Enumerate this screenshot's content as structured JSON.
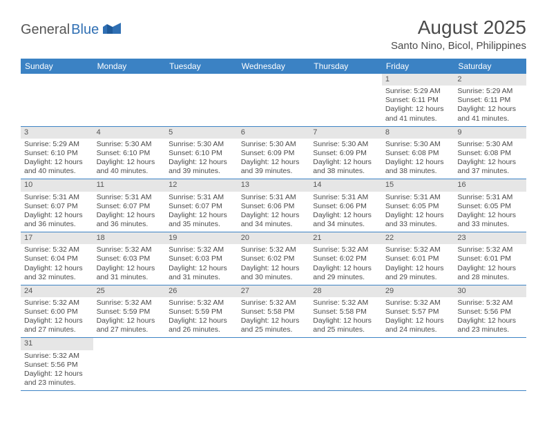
{
  "logo": {
    "part1": "General",
    "part2": "Blue"
  },
  "title": "August 2025",
  "location": "Santo Nino, Bicol, Philippines",
  "colors": {
    "header_bg": "#3b82c4",
    "header_text": "#ffffff",
    "daynum_bg": "#e6e6e6",
    "text": "#4a4a4a",
    "logo_blue": "#2f6fb3",
    "page_bg": "#ffffff",
    "row_border": "#3b82c4"
  },
  "weekdays": [
    "Sunday",
    "Monday",
    "Tuesday",
    "Wednesday",
    "Thursday",
    "Friday",
    "Saturday"
  ],
  "weeks": [
    [
      {
        "num": "",
        "sunrise": "",
        "sunset": "",
        "daylight": ""
      },
      {
        "num": "",
        "sunrise": "",
        "sunset": "",
        "daylight": ""
      },
      {
        "num": "",
        "sunrise": "",
        "sunset": "",
        "daylight": ""
      },
      {
        "num": "",
        "sunrise": "",
        "sunset": "",
        "daylight": ""
      },
      {
        "num": "",
        "sunrise": "",
        "sunset": "",
        "daylight": ""
      },
      {
        "num": "1",
        "sunrise": "Sunrise: 5:29 AM",
        "sunset": "Sunset: 6:11 PM",
        "daylight": "Daylight: 12 hours and 41 minutes."
      },
      {
        "num": "2",
        "sunrise": "Sunrise: 5:29 AM",
        "sunset": "Sunset: 6:11 PM",
        "daylight": "Daylight: 12 hours and 41 minutes."
      }
    ],
    [
      {
        "num": "3",
        "sunrise": "Sunrise: 5:29 AM",
        "sunset": "Sunset: 6:10 PM",
        "daylight": "Daylight: 12 hours and 40 minutes."
      },
      {
        "num": "4",
        "sunrise": "Sunrise: 5:30 AM",
        "sunset": "Sunset: 6:10 PM",
        "daylight": "Daylight: 12 hours and 40 minutes."
      },
      {
        "num": "5",
        "sunrise": "Sunrise: 5:30 AM",
        "sunset": "Sunset: 6:10 PM",
        "daylight": "Daylight: 12 hours and 39 minutes."
      },
      {
        "num": "6",
        "sunrise": "Sunrise: 5:30 AM",
        "sunset": "Sunset: 6:09 PM",
        "daylight": "Daylight: 12 hours and 39 minutes."
      },
      {
        "num": "7",
        "sunrise": "Sunrise: 5:30 AM",
        "sunset": "Sunset: 6:09 PM",
        "daylight": "Daylight: 12 hours and 38 minutes."
      },
      {
        "num": "8",
        "sunrise": "Sunrise: 5:30 AM",
        "sunset": "Sunset: 6:08 PM",
        "daylight": "Daylight: 12 hours and 38 minutes."
      },
      {
        "num": "9",
        "sunrise": "Sunrise: 5:30 AM",
        "sunset": "Sunset: 6:08 PM",
        "daylight": "Daylight: 12 hours and 37 minutes."
      }
    ],
    [
      {
        "num": "10",
        "sunrise": "Sunrise: 5:31 AM",
        "sunset": "Sunset: 6:07 PM",
        "daylight": "Daylight: 12 hours and 36 minutes."
      },
      {
        "num": "11",
        "sunrise": "Sunrise: 5:31 AM",
        "sunset": "Sunset: 6:07 PM",
        "daylight": "Daylight: 12 hours and 36 minutes."
      },
      {
        "num": "12",
        "sunrise": "Sunrise: 5:31 AM",
        "sunset": "Sunset: 6:07 PM",
        "daylight": "Daylight: 12 hours and 35 minutes."
      },
      {
        "num": "13",
        "sunrise": "Sunrise: 5:31 AM",
        "sunset": "Sunset: 6:06 PM",
        "daylight": "Daylight: 12 hours and 34 minutes."
      },
      {
        "num": "14",
        "sunrise": "Sunrise: 5:31 AM",
        "sunset": "Sunset: 6:06 PM",
        "daylight": "Daylight: 12 hours and 34 minutes."
      },
      {
        "num": "15",
        "sunrise": "Sunrise: 5:31 AM",
        "sunset": "Sunset: 6:05 PM",
        "daylight": "Daylight: 12 hours and 33 minutes."
      },
      {
        "num": "16",
        "sunrise": "Sunrise: 5:31 AM",
        "sunset": "Sunset: 6:05 PM",
        "daylight": "Daylight: 12 hours and 33 minutes."
      }
    ],
    [
      {
        "num": "17",
        "sunrise": "Sunrise: 5:32 AM",
        "sunset": "Sunset: 6:04 PM",
        "daylight": "Daylight: 12 hours and 32 minutes."
      },
      {
        "num": "18",
        "sunrise": "Sunrise: 5:32 AM",
        "sunset": "Sunset: 6:03 PM",
        "daylight": "Daylight: 12 hours and 31 minutes."
      },
      {
        "num": "19",
        "sunrise": "Sunrise: 5:32 AM",
        "sunset": "Sunset: 6:03 PM",
        "daylight": "Daylight: 12 hours and 31 minutes."
      },
      {
        "num": "20",
        "sunrise": "Sunrise: 5:32 AM",
        "sunset": "Sunset: 6:02 PM",
        "daylight": "Daylight: 12 hours and 30 minutes."
      },
      {
        "num": "21",
        "sunrise": "Sunrise: 5:32 AM",
        "sunset": "Sunset: 6:02 PM",
        "daylight": "Daylight: 12 hours and 29 minutes."
      },
      {
        "num": "22",
        "sunrise": "Sunrise: 5:32 AM",
        "sunset": "Sunset: 6:01 PM",
        "daylight": "Daylight: 12 hours and 29 minutes."
      },
      {
        "num": "23",
        "sunrise": "Sunrise: 5:32 AM",
        "sunset": "Sunset: 6:01 PM",
        "daylight": "Daylight: 12 hours and 28 minutes."
      }
    ],
    [
      {
        "num": "24",
        "sunrise": "Sunrise: 5:32 AM",
        "sunset": "Sunset: 6:00 PM",
        "daylight": "Daylight: 12 hours and 27 minutes."
      },
      {
        "num": "25",
        "sunrise": "Sunrise: 5:32 AM",
        "sunset": "Sunset: 5:59 PM",
        "daylight": "Daylight: 12 hours and 27 minutes."
      },
      {
        "num": "26",
        "sunrise": "Sunrise: 5:32 AM",
        "sunset": "Sunset: 5:59 PM",
        "daylight": "Daylight: 12 hours and 26 minutes."
      },
      {
        "num": "27",
        "sunrise": "Sunrise: 5:32 AM",
        "sunset": "Sunset: 5:58 PM",
        "daylight": "Daylight: 12 hours and 25 minutes."
      },
      {
        "num": "28",
        "sunrise": "Sunrise: 5:32 AM",
        "sunset": "Sunset: 5:58 PM",
        "daylight": "Daylight: 12 hours and 25 minutes."
      },
      {
        "num": "29",
        "sunrise": "Sunrise: 5:32 AM",
        "sunset": "Sunset: 5:57 PM",
        "daylight": "Daylight: 12 hours and 24 minutes."
      },
      {
        "num": "30",
        "sunrise": "Sunrise: 5:32 AM",
        "sunset": "Sunset: 5:56 PM",
        "daylight": "Daylight: 12 hours and 23 minutes."
      }
    ],
    [
      {
        "num": "31",
        "sunrise": "Sunrise: 5:32 AM",
        "sunset": "Sunset: 5:56 PM",
        "daylight": "Daylight: 12 hours and 23 minutes."
      },
      {
        "num": "",
        "sunrise": "",
        "sunset": "",
        "daylight": ""
      },
      {
        "num": "",
        "sunrise": "",
        "sunset": "",
        "daylight": ""
      },
      {
        "num": "",
        "sunrise": "",
        "sunset": "",
        "daylight": ""
      },
      {
        "num": "",
        "sunrise": "",
        "sunset": "",
        "daylight": ""
      },
      {
        "num": "",
        "sunrise": "",
        "sunset": "",
        "daylight": ""
      },
      {
        "num": "",
        "sunrise": "",
        "sunset": "",
        "daylight": ""
      }
    ]
  ]
}
